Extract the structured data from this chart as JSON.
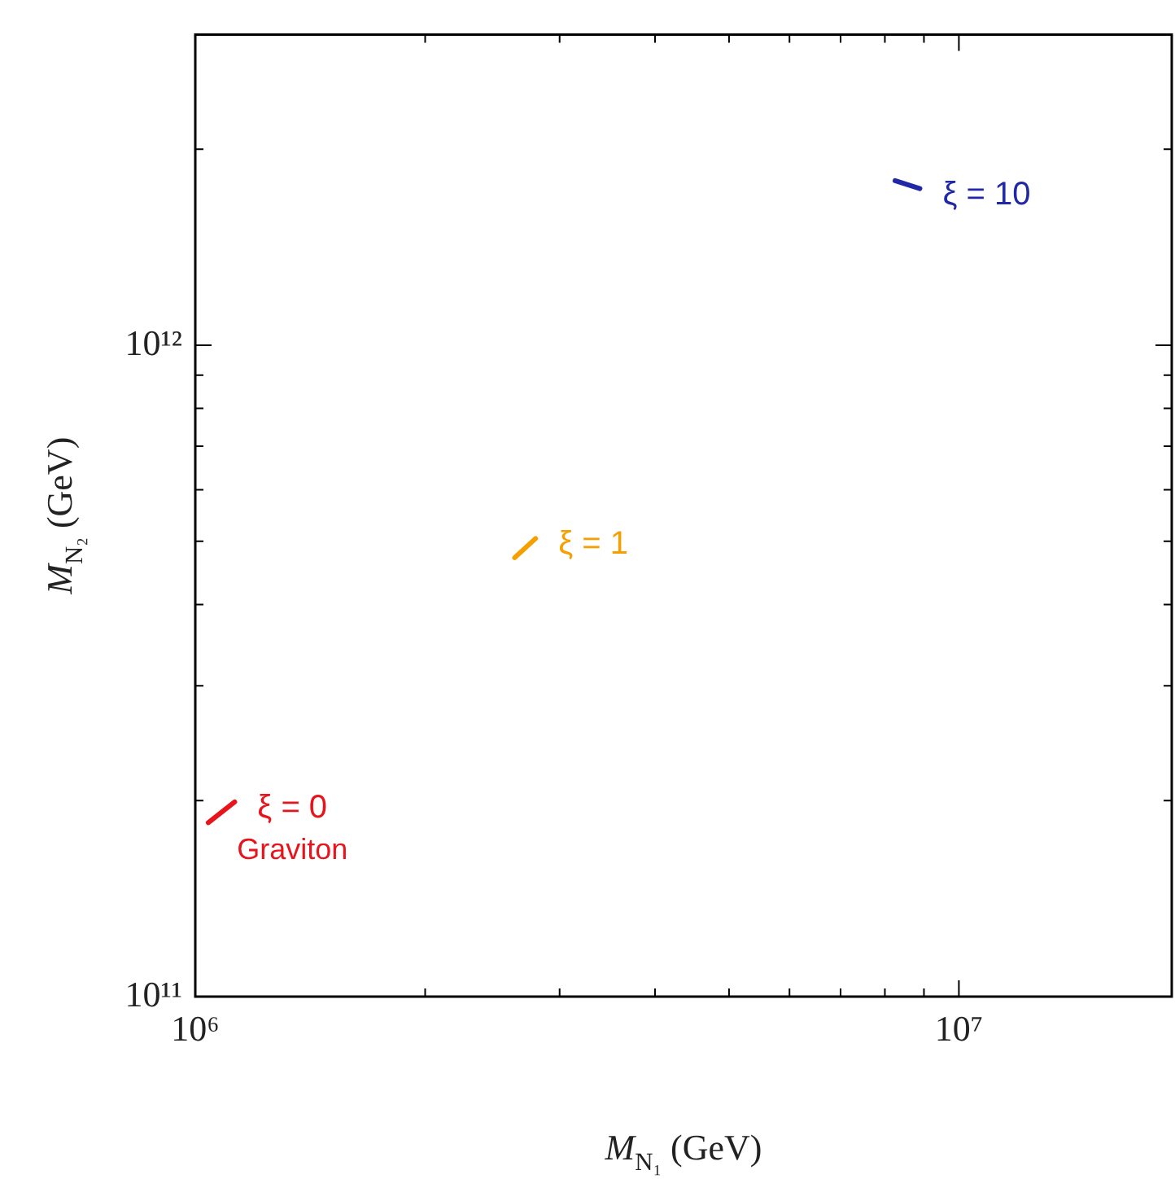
{
  "chart_data": {
    "type": "line",
    "xlabel": "M$_{N₁}$ (GeV)",
    "ylabel": "M$_{N₂}$ (GeV)",
    "log": "xy",
    "grid": false,
    "legend": false,
    "marker": "none",
    "line_style": "solid",
    "xlim": [
      1000000,
      19000000
    ],
    "ylim": [
      100000000000,
      3000000000000
    ],
    "xticks": [
      {
        "value": 1000000,
        "label": "10⁶"
      },
      {
        "value": 2000000,
        "label": null
      },
      {
        "value": 3000000,
        "label": null
      },
      {
        "value": 4000000,
        "label": null
      },
      {
        "value": 5000000,
        "label": null
      },
      {
        "value": 6000000,
        "label": null
      },
      {
        "value": 7000000,
        "label": null
      },
      {
        "value": 8000000,
        "label": null
      },
      {
        "value": 9000000,
        "label": null
      },
      {
        "value": 10000000,
        "label": "10⁷"
      }
    ],
    "yticks": [
      {
        "value": 100000000000,
        "label": "10¹¹"
      },
      {
        "value": 200000000000,
        "label": null
      },
      {
        "value": 300000000000,
        "label": null
      },
      {
        "value": 400000000000,
        "label": null
      },
      {
        "value": 500000000000,
        "label": null
      },
      {
        "value": 600000000000,
        "label": null
      },
      {
        "value": 700000000000,
        "label": null
      },
      {
        "value": 800000000000,
        "label": null
      },
      {
        "value": 900000000000,
        "label": null
      },
      {
        "value": 1000000000000,
        "label": "10¹²"
      },
      {
        "value": 2000000000000,
        "label": null
      },
      {
        "value": 3000000000000,
        "label": null
      }
    ],
    "series": [
      {
        "name": "ξ = 0",
        "color": "#e8141c",
        "x": [
          1040000,
          1126000
        ],
        "values": [
          185000000000,
          199000000000
        ]
      },
      {
        "name": "ξ = 1",
        "color": "#f5a000",
        "x": [
          2620000,
          2790000
        ],
        "values": [
          472000000000,
          505000000000
        ]
      },
      {
        "name": "ξ = 10",
        "color": "#2028a8",
        "x": [
          8250000,
          8890000
        ],
        "values": [
          1790000000000,
          1740000000000
        ]
      }
    ],
    "annotations": [
      "Graviton"
    ]
  }
}
